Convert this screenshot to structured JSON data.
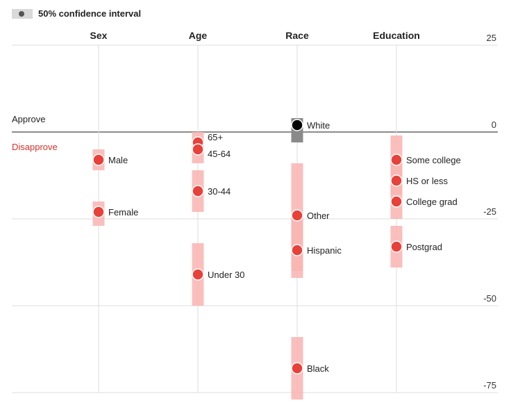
{
  "legend": {
    "label": "50% confidence interval"
  },
  "labels": {
    "approve": "Approve",
    "disapprove": "Disapprove"
  },
  "colors": {
    "disapprove_dot": "#e8413a",
    "band": "#f9b4b2",
    "band_dark": "#f28a86",
    "approve_dot": "#000000",
    "white_band": "#8a8a8a",
    "axis": "#666666",
    "grid": "#dddddd",
    "disapprove_text": "#d9312b"
  },
  "chart_data": {
    "type": "scatter",
    "title": "",
    "xlabel": "",
    "ylabel": "",
    "ylim": [
      -75,
      25
    ],
    "yticks": [
      25,
      0,
      -25,
      -50,
      -75
    ],
    "grid": true,
    "legend_placement": "top-left",
    "categories": [
      "Sex",
      "Age",
      "Race",
      "Education"
    ],
    "points": [
      {
        "category": "Sex",
        "label": "Male",
        "value": -8,
        "ci": [
          -11,
          -5
        ]
      },
      {
        "category": "Sex",
        "label": "Female",
        "value": -23,
        "ci": [
          -27,
          -20
        ]
      },
      {
        "category": "Age",
        "label": "65+",
        "value": -3,
        "ci": [
          -4,
          0
        ]
      },
      {
        "category": "Age",
        "label": "45-64",
        "value": -5,
        "ci": [
          -9,
          -4
        ]
      },
      {
        "category": "Age",
        "label": "30-44",
        "value": -17,
        "ci": [
          -23,
          -11
        ]
      },
      {
        "category": "Age",
        "label": "Under 30",
        "value": -41,
        "ci": [
          -50,
          -32
        ]
      },
      {
        "category": "Race",
        "label": "White",
        "value": 2,
        "ci": [
          4,
          -3
        ]
      },
      {
        "category": "Race",
        "label": "Other",
        "value": -24,
        "ci": [
          -42,
          -9
        ]
      },
      {
        "category": "Race",
        "label": "Hispanic",
        "value": -34,
        "ci": [
          -40,
          -24
        ]
      },
      {
        "category": "Race",
        "label": "Black",
        "value": -68,
        "ci": [
          -77,
          -59
        ]
      },
      {
        "category": "Education",
        "label": "Some college",
        "value": -8,
        "ci": [
          -13,
          -1
        ]
      },
      {
        "category": "Education",
        "label": "HS or less",
        "value": -14,
        "ci": [
          -18,
          -8
        ]
      },
      {
        "category": "Education",
        "label": "College grad",
        "value": -20,
        "ci": [
          -25,
          -15
        ]
      },
      {
        "category": "Education",
        "label": "Postgrad",
        "value": -33,
        "ci": [
          -39,
          -27
        ]
      }
    ]
  }
}
